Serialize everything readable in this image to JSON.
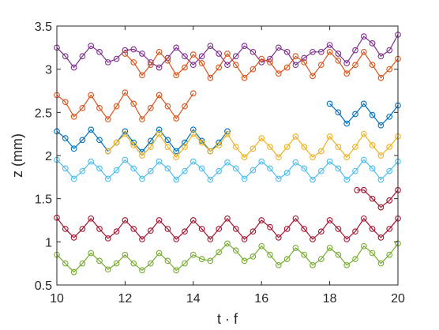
{
  "chart_data": {
    "type": "scatter",
    "title": "",
    "xlabel": "t · f",
    "ylabel": "z (mm)",
    "xlim": [
      10,
      20
    ],
    "ylim": [
      0.5,
      3.5
    ],
    "xticks": [
      10,
      12,
      14,
      16,
      18,
      20
    ],
    "yticks": [
      0.5,
      1,
      1.5,
      2,
      2.5,
      3,
      3.5
    ],
    "xtick_labels": [
      "10",
      "12",
      "14",
      "16",
      "18",
      "20"
    ],
    "ytick_labels": [
      "0.5",
      "1",
      "1.5",
      "2",
      "2.5",
      "3",
      "3.5"
    ],
    "grid": false,
    "legend": "none",
    "marker": "open-circle",
    "series": [
      {
        "color": "#7E2F8E",
        "x": [
          10.0,
          10.25,
          10.5,
          10.75,
          11.0,
          11.25,
          11.5,
          11.75,
          12.0,
          12.25,
          12.5,
          12.75,
          13.0,
          13.25,
          13.5,
          13.75,
          14.0,
          14.25,
          14.5,
          14.75,
          15.0,
          15.25,
          15.5,
          15.75,
          16.0,
          16.25,
          16.5,
          16.75,
          17.0,
          17.25,
          17.5,
          17.75,
          18.0,
          18.25,
          18.5,
          18.75,
          19.0,
          19.25,
          19.5,
          19.75,
          20.0
        ],
        "y": [
          3.25,
          3.15,
          3.02,
          3.15,
          3.27,
          3.2,
          3.08,
          3.12,
          3.22,
          3.23,
          3.18,
          3.08,
          3.02,
          3.13,
          3.25,
          3.15,
          3.05,
          3.15,
          3.27,
          3.18,
          3.05,
          3.15,
          3.27,
          3.2,
          3.08,
          3.12,
          3.25,
          3.2,
          3.05,
          3.13,
          3.2,
          3.2,
          3.28,
          3.18,
          3.07,
          3.22,
          3.38,
          3.3,
          3.15,
          3.22,
          3.4
        ]
      },
      {
        "color": "#D95319",
        "x": [
          12.0,
          12.25,
          12.5,
          12.75,
          13.0,
          13.25,
          13.5,
          13.75,
          14.0,
          14.25,
          14.5,
          14.75,
          15.0,
          15.25,
          15.5,
          15.75,
          16.0,
          16.25,
          16.5,
          16.75,
          17.0,
          17.25,
          17.5,
          17.75,
          18.0,
          18.25,
          18.5,
          18.75,
          19.0,
          19.25,
          19.5,
          19.75,
          20.0
        ],
        "y": [
          3.18,
          3.08,
          2.93,
          3.05,
          3.2,
          3.1,
          2.93,
          3.02,
          3.17,
          3.07,
          2.9,
          3.02,
          3.18,
          3.05,
          2.9,
          3.0,
          3.12,
          3.08,
          2.95,
          3.02,
          3.15,
          3.08,
          2.92,
          3.05,
          3.2,
          3.1,
          2.95,
          3.05,
          3.2,
          3.05,
          2.9,
          3.0,
          3.12
        ]
      },
      {
        "color": "#D95319",
        "x": [
          10.0,
          10.25,
          10.5,
          10.75,
          11.0,
          11.25,
          11.5,
          11.75,
          12.0,
          12.25,
          12.5,
          12.75,
          13.0,
          13.25,
          13.5,
          13.75,
          14.0
        ],
        "y": [
          2.7,
          2.62,
          2.45,
          2.55,
          2.7,
          2.55,
          2.42,
          2.57,
          2.73,
          2.6,
          2.42,
          2.55,
          2.7,
          2.57,
          2.43,
          2.57,
          2.72
        ]
      },
      {
        "color": "#0072BD",
        "x": [
          18.0,
          18.25,
          18.5,
          18.75,
          19.0,
          19.25,
          19.5,
          19.75,
          20.0
        ],
        "y": [
          2.6,
          2.5,
          2.37,
          2.48,
          2.6,
          2.47,
          2.35,
          2.45,
          2.58
        ]
      },
      {
        "color": "#0072BD",
        "x": [
          10.0,
          10.25,
          10.5,
          10.75,
          11.0,
          11.25,
          11.5,
          11.75,
          12.0,
          12.25,
          12.5,
          12.75,
          13.0,
          13.25,
          13.5,
          13.75,
          14.0,
          14.25,
          14.5,
          14.75,
          15.0
        ],
        "y": [
          2.28,
          2.2,
          2.08,
          2.18,
          2.3,
          2.18,
          2.05,
          2.15,
          2.28,
          2.15,
          2.04,
          2.17,
          2.3,
          2.18,
          2.05,
          2.15,
          2.3,
          2.17,
          2.05,
          2.15,
          2.28
        ]
      },
      {
        "color": "#EDB120",
        "x": [
          11.5,
          11.75,
          12.0,
          12.25,
          12.5,
          12.75,
          13.0,
          13.25,
          13.5,
          13.75,
          14.0,
          14.25,
          14.5,
          14.75,
          15.0,
          15.25,
          15.5,
          15.75,
          16.0,
          16.25,
          16.5,
          16.75,
          17.0,
          17.25,
          17.5,
          17.75,
          18.0,
          18.25,
          18.5,
          18.75,
          19.0,
          19.25,
          19.5,
          19.75,
          20.0
        ],
        "y": [
          2.05,
          2.15,
          2.25,
          2.12,
          2.0,
          2.1,
          2.25,
          2.1,
          1.98,
          2.1,
          2.25,
          2.15,
          2.05,
          2.12,
          2.25,
          2.1,
          1.98,
          2.08,
          2.2,
          2.1,
          1.98,
          2.1,
          2.22,
          2.1,
          1.98,
          2.05,
          2.22,
          2.1,
          1.98,
          2.1,
          2.25,
          2.12,
          2.0,
          2.1,
          2.22
        ]
      },
      {
        "color": "#4DBEEE",
        "x": [
          10.0,
          10.25,
          10.5,
          10.75,
          11.0,
          11.25,
          11.5,
          11.75,
          12.0,
          12.25,
          12.5,
          12.75,
          13.0,
          13.25,
          13.5,
          13.75,
          14.0,
          14.25,
          14.5,
          14.75,
          15.0,
          15.25,
          15.5,
          15.75,
          16.0,
          16.25,
          16.5,
          16.75,
          17.0,
          17.25,
          17.5,
          17.75,
          18.0,
          18.25,
          18.5,
          18.75,
          19.0,
          19.25,
          19.5,
          19.75,
          20.0
        ],
        "y": [
          1.95,
          1.85,
          1.73,
          1.82,
          1.93,
          1.85,
          1.73,
          1.83,
          1.95,
          1.85,
          1.73,
          1.82,
          1.93,
          1.85,
          1.72,
          1.82,
          1.93,
          1.85,
          1.72,
          1.82,
          1.92,
          1.85,
          1.73,
          1.83,
          1.93,
          1.85,
          1.73,
          1.8,
          1.92,
          1.85,
          1.72,
          1.82,
          1.93,
          1.85,
          1.72,
          1.82,
          1.95,
          1.85,
          1.72,
          1.82,
          1.93
        ]
      },
      {
        "color": "#A2142F",
        "x": [
          18.8,
          19.0,
          19.25,
          19.5,
          19.75,
          20.0
        ],
        "y": [
          1.6,
          1.6,
          1.5,
          1.4,
          1.48,
          1.6
        ]
      },
      {
        "color": "#A2142F",
        "x": [
          10.0,
          10.25,
          10.5,
          10.75,
          11.0,
          11.25,
          11.5,
          11.75,
          12.0,
          12.25,
          12.5,
          12.75,
          13.0,
          13.25,
          13.5,
          13.75,
          14.0,
          14.25,
          14.5,
          14.75,
          15.0,
          15.25,
          15.5,
          15.75,
          16.0,
          16.25,
          16.5,
          16.75,
          17.0,
          17.25,
          17.5,
          17.75,
          18.0,
          18.25,
          18.5,
          18.75,
          19.0,
          19.25,
          19.5,
          19.75,
          20.0
        ],
        "y": [
          1.28,
          1.15,
          1.05,
          1.15,
          1.27,
          1.15,
          1.04,
          1.12,
          1.25,
          1.15,
          1.03,
          1.13,
          1.25,
          1.15,
          1.03,
          1.12,
          1.25,
          1.15,
          1.03,
          1.15,
          1.27,
          1.15,
          1.03,
          1.12,
          1.25,
          1.17,
          1.05,
          1.15,
          1.27,
          1.15,
          1.03,
          1.12,
          1.25,
          1.15,
          1.03,
          1.12,
          1.27,
          1.15,
          1.05,
          1.15,
          1.27
        ]
      },
      {
        "color": "#77AC30",
        "x": [
          10.0,
          10.25,
          10.5,
          10.75,
          11.0,
          11.25,
          11.5,
          11.75,
          12.0,
          12.25,
          12.5,
          12.75,
          13.0,
          13.25,
          13.5,
          13.75,
          14.0,
          14.25,
          14.5,
          14.75,
          15.0,
          15.25,
          15.5,
          15.75,
          16.0,
          16.25,
          16.5,
          16.75,
          17.0,
          17.25,
          17.5,
          17.75,
          18.0,
          18.25,
          18.5,
          18.75,
          19.0,
          19.25,
          19.5,
          19.75,
          20.0
        ],
        "y": [
          0.85,
          0.75,
          0.65,
          0.75,
          0.87,
          0.78,
          0.68,
          0.75,
          0.85,
          0.75,
          0.67,
          0.75,
          0.87,
          0.78,
          0.67,
          0.75,
          0.85,
          0.8,
          0.78,
          0.88,
          0.98,
          0.9,
          0.78,
          0.83,
          0.95,
          0.85,
          0.73,
          0.8,
          0.93,
          0.85,
          0.73,
          0.8,
          0.93,
          0.85,
          0.73,
          0.8,
          0.95,
          0.87,
          0.75,
          0.85,
          0.98
        ]
      }
    ]
  }
}
